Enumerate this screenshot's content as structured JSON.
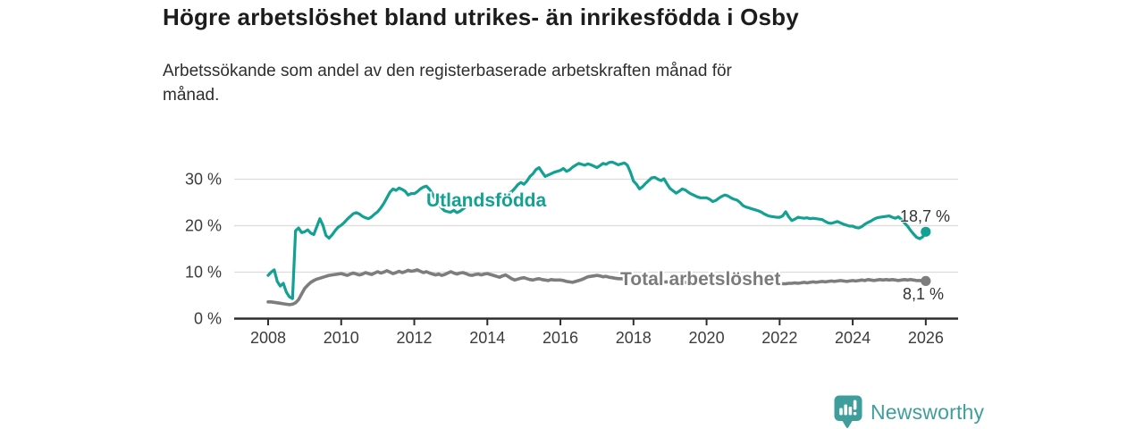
{
  "header": {
    "title": "Högre arbetslöshet bland utrikes- än inrikesfödda i Osby",
    "subtitle_line1": "Arbetssökande som andel av den registerbaserade arbetskraften månad för",
    "subtitle_line2": "månad."
  },
  "chart_data": {
    "type": "line",
    "title": "Högre arbetslöshet bland utrikes- än inrikesfödda i Osby",
    "subtitle": "Arbetssökande som andel av den registerbaserade arbetskraften månad för månad.",
    "grid": "horizontal",
    "legend_position": "inline-labels-on-lines",
    "x_frequency": "monthly",
    "x_start": "2008-01",
    "x_end": "2026-01",
    "xlim": [
      2008,
      2026.9
    ],
    "ylim": [
      0,
      35
    ],
    "x_axis": {
      "tick_years": [
        2008,
        2010,
        2012,
        2014,
        2016,
        2018,
        2020,
        2022,
        2024,
        2026
      ]
    },
    "y_axis": {
      "ticks": [
        {
          "value": 0,
          "label": "0 %"
        },
        {
          "value": 10,
          "label": "10 %"
        },
        {
          "value": 20,
          "label": "20 %"
        },
        {
          "value": 30,
          "label": "30 %"
        }
      ]
    },
    "series": [
      {
        "name": "Utlandsfödda",
        "color": "#12a192",
        "end_label": "18,7 %",
        "end_value": 18.7,
        "values": [
          9.3,
          10.0,
          10.5,
          8.0,
          7.0,
          7.6,
          5.7,
          4.7,
          4.3,
          18.9,
          19.5,
          18.5,
          18.7,
          19.1,
          18.4,
          18.1,
          19.8,
          21.5,
          20.1,
          17.9,
          17.3,
          18.0,
          18.9,
          19.7,
          20.1,
          20.7,
          21.4,
          22.0,
          22.6,
          22.8,
          22.5,
          22.0,
          21.7,
          21.5,
          21.9,
          22.5,
          23.0,
          23.8,
          24.8,
          26.0,
          27.2,
          27.9,
          27.6,
          28.1,
          27.8,
          27.4,
          26.6,
          26.9,
          26.9,
          27.3,
          27.9,
          28.3,
          28.5,
          27.8,
          26.8,
          25.6,
          24.6,
          23.8,
          23.2,
          23.0,
          22.9,
          23.3,
          22.8,
          23.1,
          23.6,
          24.1,
          24.7,
          25.2,
          25.6,
          25.9,
          26.1,
          26.2,
          26.1,
          26.0,
          26.2,
          26.5,
          26.3,
          26.6,
          26.8,
          27.0,
          27.3,
          28.0,
          28.8,
          29.3,
          28.9,
          29.6,
          30.6,
          31.2,
          32.1,
          32.5,
          31.5,
          30.6,
          30.9,
          31.2,
          31.5,
          31.7,
          31.9,
          32.3,
          31.7,
          32.0,
          32.6,
          33.0,
          33.4,
          33.2,
          33.0,
          33.3,
          33.1,
          32.8,
          32.5,
          32.9,
          33.4,
          33.2,
          33.6,
          33.7,
          33.4,
          33.1,
          33.3,
          33.5,
          33.0,
          31.5,
          29.6,
          28.9,
          27.9,
          28.4,
          29.1,
          29.7,
          30.3,
          30.4,
          30.0,
          29.7,
          30.1,
          29.0,
          28.0,
          27.5,
          27.0,
          27.4,
          27.9,
          27.7,
          27.2,
          26.8,
          26.5,
          26.2,
          26.0,
          26.0,
          26.0,
          25.7,
          25.2,
          25.4,
          25.9,
          26.3,
          26.6,
          26.4,
          26.0,
          25.7,
          25.5,
          25.0,
          24.3,
          24.0,
          23.8,
          23.6,
          23.4,
          23.2,
          22.9,
          22.5,
          22.2,
          22.0,
          21.9,
          21.8,
          21.8,
          22.1,
          23.0,
          21.9,
          21.1,
          21.4,
          21.8,
          21.7,
          21.6,
          21.7,
          21.5,
          21.6,
          21.5,
          21.4,
          21.3,
          20.9,
          20.6,
          20.5,
          20.7,
          20.9,
          20.6,
          20.3,
          20.1,
          19.9,
          19.9,
          19.6,
          19.5,
          19.8,
          20.3,
          20.7,
          21.0,
          21.4,
          21.7,
          21.8,
          21.9,
          22.0,
          22.1,
          21.8,
          21.6,
          21.9,
          21.3,
          20.6,
          19.9,
          19.0,
          18.2,
          17.5,
          17.2,
          17.6,
          18.7
        ]
      },
      {
        "name": "Total arbetslöshet",
        "color": "#7d7d7d",
        "end_label": "8,1 %",
        "end_value": 8.1,
        "values": [
          3.6,
          3.6,
          3.5,
          3.4,
          3.3,
          3.2,
          3.1,
          3.0,
          3.1,
          3.4,
          4.1,
          5.3,
          6.5,
          7.2,
          7.8,
          8.2,
          8.5,
          8.7,
          8.9,
          9.1,
          9.3,
          9.4,
          9.5,
          9.6,
          9.7,
          9.5,
          9.3,
          9.6,
          9.8,
          9.6,
          9.4,
          9.6,
          9.9,
          9.7,
          9.5,
          9.8,
          10.1,
          9.8,
          10.0,
          10.3,
          10.0,
          9.7,
          9.9,
          10.2,
          9.9,
          10.1,
          10.4,
          10.2,
          10.3,
          10.5,
          10.2,
          9.9,
          10.1,
          9.8,
          9.6,
          9.4,
          9.6,
          9.3,
          9.5,
          9.8,
          10.1,
          9.8,
          9.6,
          9.8,
          9.9,
          9.7,
          9.4,
          9.3,
          9.5,
          9.6,
          9.4,
          9.6,
          9.7,
          9.5,
          9.3,
          9.1,
          8.9,
          9.2,
          9.4,
          9.0,
          8.6,
          8.3,
          8.5,
          8.7,
          8.8,
          8.6,
          8.4,
          8.3,
          8.5,
          8.6,
          8.4,
          8.3,
          8.2,
          8.4,
          8.3,
          8.3,
          8.3,
          8.2,
          8.0,
          7.9,
          7.8,
          8.0,
          8.2,
          8.4,
          8.7,
          9.0,
          9.1,
          9.2,
          9.3,
          9.2,
          9.0,
          9.1,
          8.9,
          8.8,
          8.7,
          8.6,
          8.6,
          8.5,
          8.5,
          8.4,
          8.4,
          8.3,
          8.3,
          8.2,
          8.2,
          8.1,
          8.1,
          8.0,
          8.0,
          7.9,
          7.9,
          7.9,
          7.8,
          7.8,
          7.8,
          7.9,
          7.9,
          7.8,
          7.8,
          7.9,
          7.9,
          8.0,
          8.0,
          8.1,
          8.2,
          8.3,
          8.5,
          8.6,
          8.7,
          8.6,
          8.5,
          8.4,
          8.3,
          8.2,
          8.1,
          8.0,
          7.9,
          7.9,
          7.8,
          7.8,
          7.7,
          7.7,
          7.6,
          7.6,
          7.7,
          7.7,
          7.6,
          7.6,
          7.6,
          7.5,
          7.5,
          7.6,
          7.6,
          7.7,
          7.6,
          7.7,
          7.8,
          7.7,
          7.8,
          7.9,
          7.8,
          7.9,
          8.0,
          7.9,
          8.0,
          8.1,
          8.0,
          8.1,
          8.2,
          8.1,
          8.0,
          8.1,
          8.2,
          8.1,
          8.2,
          8.3,
          8.2,
          8.4,
          8.3,
          8.2,
          8.3,
          8.4,
          8.3,
          8.4,
          8.3,
          8.4,
          8.3,
          8.2,
          8.3,
          8.4,
          8.3,
          8.4,
          8.3,
          8.2,
          8.2,
          8.2,
          8.1
        ]
      }
    ],
    "colors": {
      "grid": "#dcdcdc",
      "axis": "#2e2e2e",
      "tick_text": "#3c3c3c"
    }
  },
  "footer": {
    "brand": "Newsworthy",
    "brand_color": "#3f9e9b",
    "logo_icon": "newsworthy-pin-barchart-icon"
  }
}
